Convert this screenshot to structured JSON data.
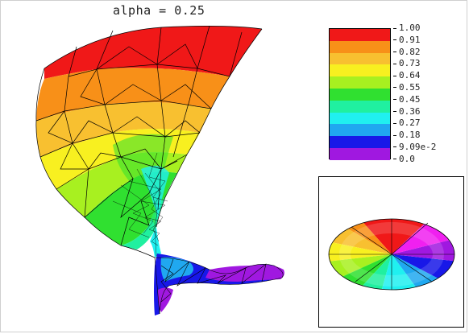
{
  "title": "alpha  =  0.25",
  "legend": {
    "labels": [
      "1.00",
      "0.91",
      "0.82",
      "0.73",
      "0.64",
      "0.55",
      "0.45",
      "0.36",
      "0.27",
      "0.18",
      "9.09e-2",
      "0.0"
    ],
    "colors": [
      "#f01818",
      "#f89018",
      "#f8c030",
      "#f8f020",
      "#a8f020",
      "#30e030",
      "#20f0a0",
      "#20f0f0",
      "#20a8f0",
      "#1818e8",
      "#a018e0",
      "#f020f0"
    ]
  },
  "surface": {
    "description_colors": {
      "top": "#f01818",
      "orange": "#f89018",
      "yellow": "#f8f020",
      "green": "#30e030",
      "cyan": "#20f0f0",
      "blue": "#1818e8",
      "purple": "#a018e0"
    }
  }
}
